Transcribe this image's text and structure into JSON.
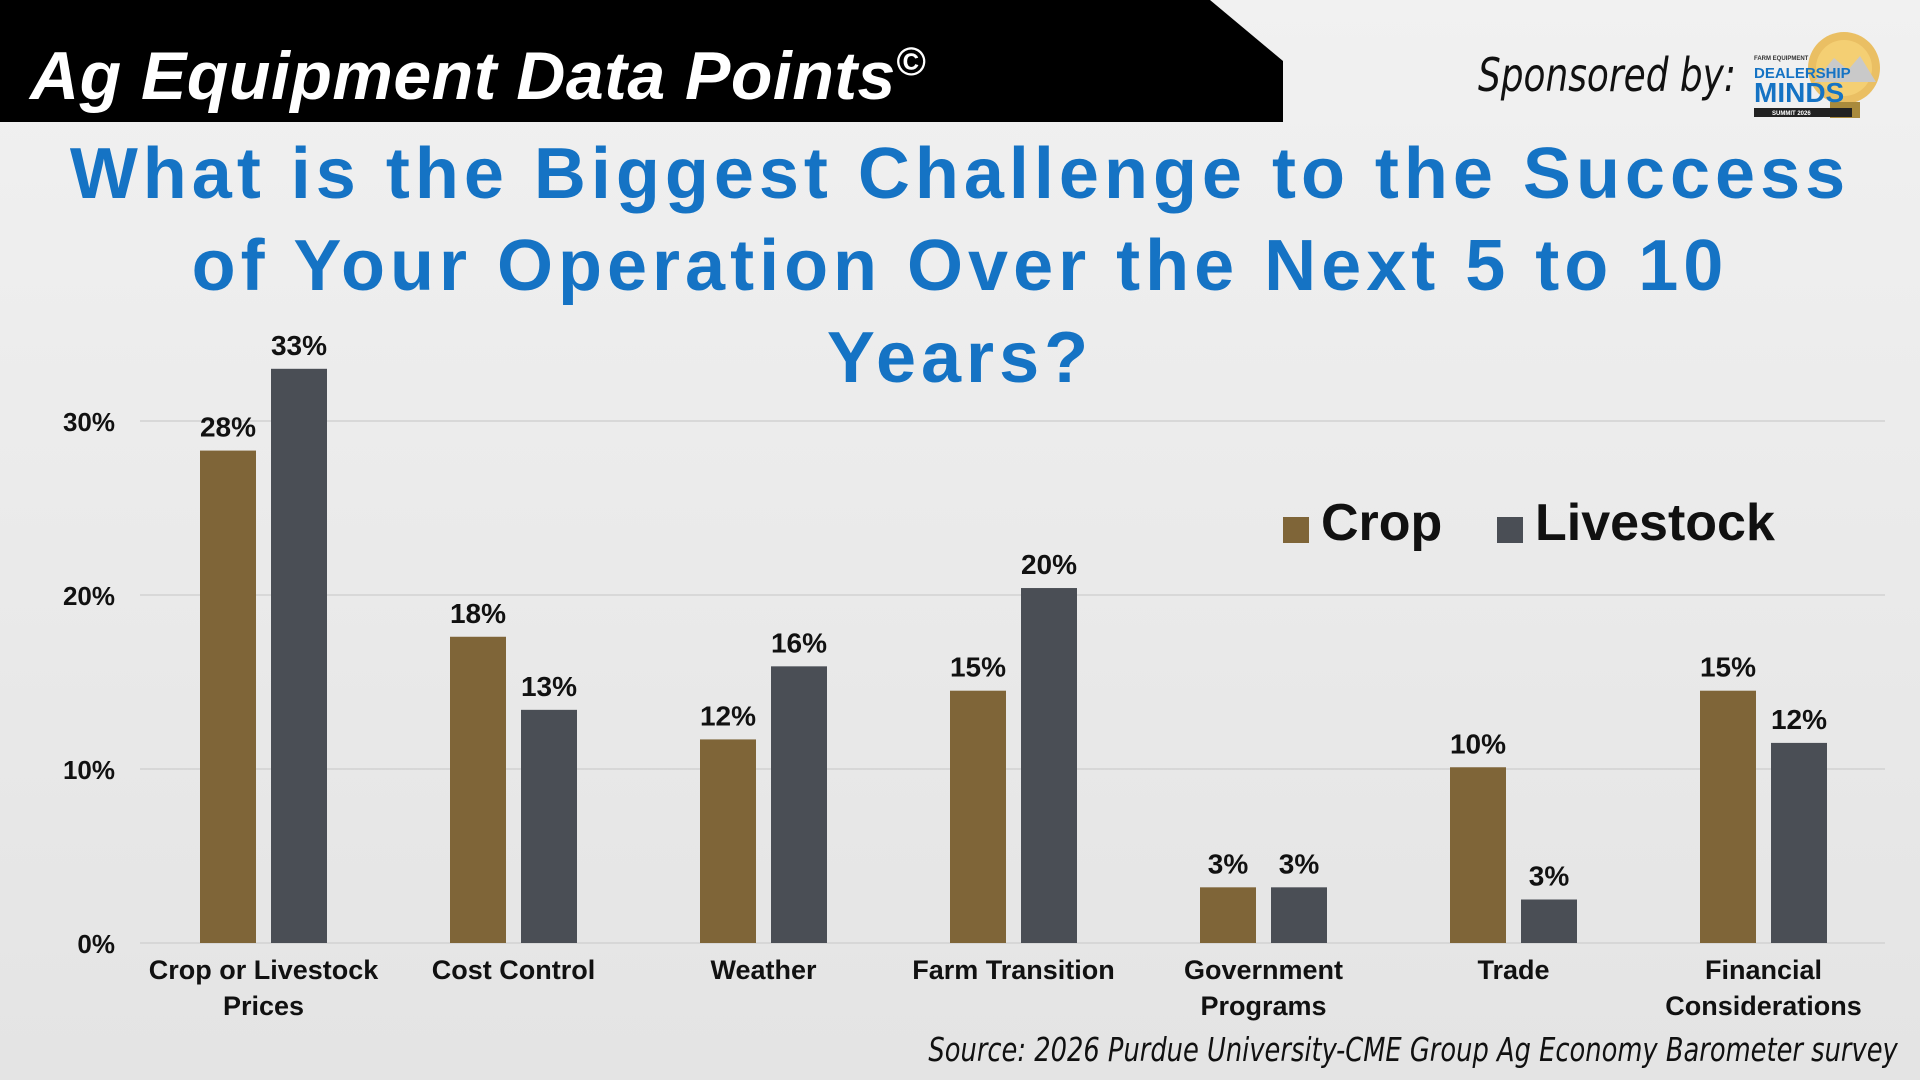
{
  "header": {
    "title": "Ag Equipment Data Points",
    "copyright": "©",
    "sponsor_label": "Sponsored by:"
  },
  "sponsor_logo": {
    "line1": "FARM EQUIPMENT",
    "line2": "DEALERSHIP",
    "line3": "MINDS",
    "line4": "SUMMIT 2026"
  },
  "source": "Source: 2026 Purdue University-CME Group Ag Economy Barometer survey",
  "colors": {
    "crop": "#7f6538",
    "livestock": "#4a4e55",
    "title": "#1573c4",
    "grid": "#d2d2d2"
  },
  "chart_data": {
    "type": "bar",
    "title": "What is the Biggest Challenge to the Success of Your Operation Over the Next 5 to 10 Years?",
    "categories": [
      [
        "Crop or Livestock",
        "Prices"
      ],
      [
        "Cost Control"
      ],
      [
        "Weather"
      ],
      [
        "Farm Transition"
      ],
      [
        "Government",
        "Programs"
      ],
      [
        "Trade"
      ],
      [
        "Financial",
        "Considerations"
      ]
    ],
    "series": [
      {
        "name": "Crop",
        "values": [
          28.3,
          17.6,
          11.7,
          14.5,
          3.2,
          10.1,
          14.5
        ],
        "labels": [
          "28%",
          "18%",
          "12%",
          "15%",
          "3%",
          "10%",
          "15%"
        ]
      },
      {
        "name": "Livestock",
        "values": [
          33.0,
          13.4,
          15.9,
          20.4,
          3.2,
          2.5,
          11.5
        ],
        "labels": [
          "33%",
          "13%",
          "16%",
          "20%",
          "3%",
          "3%",
          "12%"
        ]
      }
    ],
    "y_ticks": [
      0,
      10,
      20,
      30
    ],
    "y_tick_labels": [
      "0%",
      "10%",
      "20%",
      "30%"
    ],
    "ylim": [
      0,
      33
    ],
    "grid": true,
    "legend_position": "top-right"
  }
}
